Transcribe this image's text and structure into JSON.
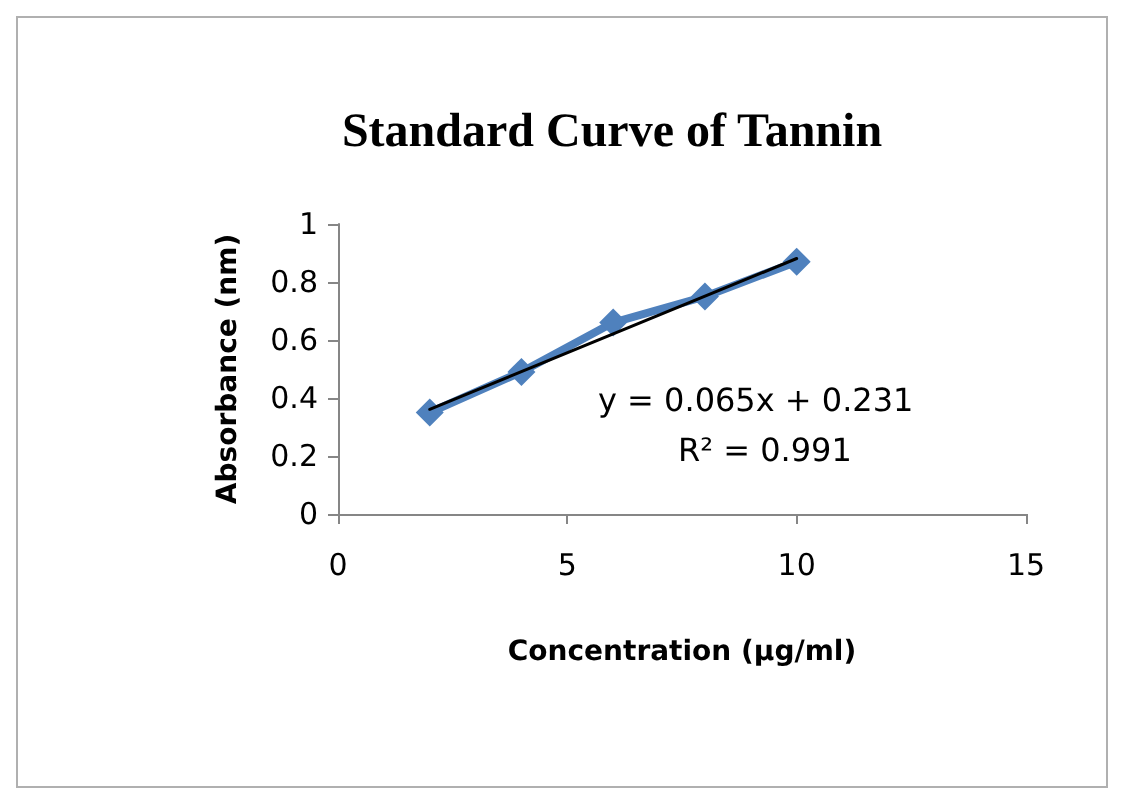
{
  "chart_data": {
    "type": "line",
    "title": "Standard Curve of Tannin",
    "xlabel": "Concentration (µg/ml)",
    "ylabel": "Absorbance (nm)",
    "x": [
      2,
      4,
      6,
      8,
      10
    ],
    "series": [
      {
        "color": "#4f81bd",
        "values": [
          0.35,
          0.49,
          0.66,
          0.75,
          0.87
        ],
        "marker": "diamond"
      },
      {
        "type": "line",
        "color": "#000000",
        "x": [
          2,
          10
        ],
        "values": [
          0.361,
          0.881
        ],
        "marker": "none"
      }
    ],
    "annotations": [
      "y = 0.065x + 0.231",
      "R² = 0.991"
    ],
    "xlim": [
      0,
      15
    ],
    "xticks": [
      0,
      5,
      10,
      15
    ],
    "ylim": [
      0,
      1
    ],
    "yticks": [
      0,
      0.2,
      0.4,
      0.6,
      0.8,
      1
    ],
    "grid": false
  }
}
